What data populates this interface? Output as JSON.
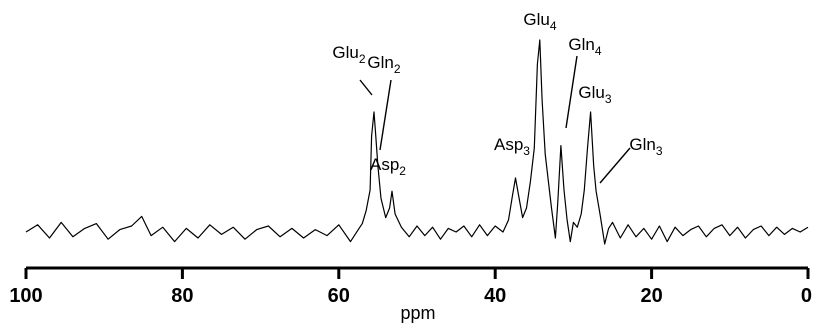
{
  "chart_data": {
    "type": "line",
    "title": "",
    "xlabel": "ppm",
    "ylabel": "",
    "xlim": [
      100,
      0
    ],
    "x_reversed": true,
    "grid": false,
    "xticks": [
      100,
      80,
      60,
      40,
      20,
      0
    ],
    "xtick_labels": [
      "100",
      "80",
      "60",
      "40",
      "20",
      "0"
    ],
    "peaks": [
      {
        "name": "Glu",
        "sub": "2",
        "ppm": 55.8
      },
      {
        "name": "Gln",
        "sub": "2",
        "ppm": 55.3
      },
      {
        "name": "Asp",
        "sub": "2",
        "ppm": 53.2
      },
      {
        "name": "Asp",
        "sub": "3",
        "ppm": 37.4
      },
      {
        "name": "Glu",
        "sub": "4",
        "ppm": 34.3
      },
      {
        "name": "Gln",
        "sub": "4",
        "ppm": 31.6
      },
      {
        "name": "Glu",
        "sub": "3",
        "ppm": 27.8
      },
      {
        "name": "Gln",
        "sub": "3",
        "ppm": 27.1
      }
    ],
    "series": [
      {
        "x": [
          100,
          98.5,
          97,
          95.5,
          94,
          92.5,
          91,
          89.5,
          88,
          86.5,
          85.2,
          84,
          82.5,
          81,
          79.5,
          78,
          76.5,
          75,
          73.5,
          72,
          70.5,
          69,
          67.5,
          66,
          64.5,
          63,
          61.5,
          60,
          58.5,
          57.5,
          57,
          56.5,
          56,
          55.8,
          55.5,
          55.3,
          55,
          54.6,
          54,
          53.5,
          53.2,
          52.8,
          52,
          51,
          50,
          49,
          48,
          47,
          46,
          45,
          44,
          43,
          42,
          41,
          40,
          39,
          38.3,
          37.8,
          37.4,
          37,
          36.5,
          36,
          35.5,
          35,
          34.6,
          34.3,
          34,
          33.6,
          33.2,
          32.8,
          32.3,
          32,
          31.6,
          31.2,
          30.8,
          30.4,
          30,
          29.5,
          29,
          28.6,
          28.2,
          27.8,
          27.4,
          27.1,
          26.6,
          26,
          25.5,
          25,
          24,
          23,
          22,
          21,
          20,
          19,
          18,
          17,
          16,
          15,
          14,
          13,
          12,
          11,
          10,
          9,
          8,
          7,
          6,
          5,
          4,
          3,
          2,
          1,
          0
        ],
        "y": [
          0.0,
          0.06,
          -0.05,
          0.08,
          -0.04,
          0.03,
          0.07,
          -0.06,
          0.02,
          0.05,
          0.13,
          -0.03,
          0.04,
          -0.08,
          0.03,
          -0.05,
          0.06,
          -0.02,
          0.04,
          -0.06,
          0.02,
          0.05,
          -0.04,
          0.03,
          -0.05,
          0.02,
          -0.03,
          0.06,
          -0.08,
          0.02,
          0.07,
          0.18,
          0.35,
          0.8,
          1.0,
          0.82,
          0.55,
          0.28,
          0.12,
          0.2,
          0.34,
          0.15,
          0.04,
          -0.04,
          0.05,
          -0.03,
          0.04,
          -0.06,
          0.03,
          0.0,
          0.05,
          -0.04,
          0.06,
          -0.03,
          0.05,
          0.0,
          0.1,
          0.3,
          0.45,
          0.3,
          0.12,
          0.2,
          0.42,
          0.7,
          1.4,
          1.6,
          1.1,
          0.65,
          0.42,
          0.2,
          -0.05,
          0.25,
          0.72,
          0.35,
          0.1,
          -0.08,
          0.08,
          0.04,
          0.15,
          0.35,
          0.7,
          1.0,
          0.55,
          0.34,
          0.15,
          -0.1,
          0.03,
          0.08,
          -0.05,
          0.06,
          -0.04,
          0.03,
          -0.06,
          0.05,
          -0.08,
          0.04,
          -0.03,
          0.02,
          0.05,
          -0.04,
          0.03,
          0.06,
          -0.03,
          0.04,
          -0.05,
          0.02,
          0.05,
          -0.03,
          0.04,
          -0.02,
          0.03,
          0.0,
          0.04
        ]
      }
    ]
  }
}
